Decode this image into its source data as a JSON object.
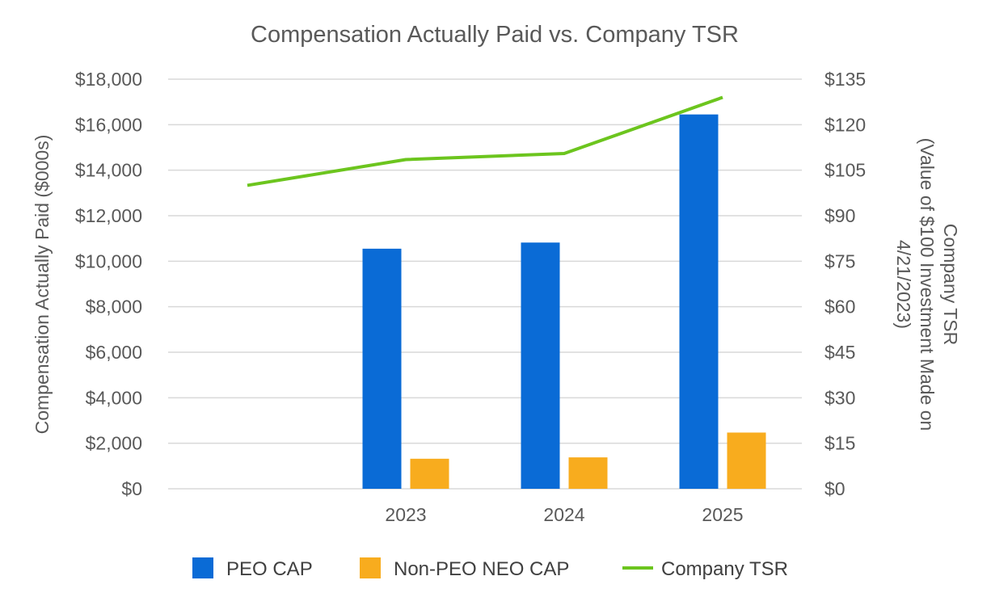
{
  "chart_data": {
    "type": "bar",
    "title": "Compensation Actually Paid vs. Company TSR",
    "categories": [
      "",
      "2023",
      "2024",
      "2025"
    ],
    "series": [
      {
        "name": "PEO CAP",
        "type": "bar",
        "axis": "left",
        "color": "#0a6bd6",
        "values": [
          null,
          10550,
          10820,
          16450
        ]
      },
      {
        "name": "Non-PEO NEO CAP",
        "type": "bar",
        "axis": "left",
        "color": "#f8ac1e",
        "values": [
          null,
          1320,
          1380,
          2470
        ]
      },
      {
        "name": "Company TSR",
        "type": "line",
        "axis": "right",
        "color": "#6cc51e",
        "values": [
          100,
          108.5,
          110.5,
          129
        ]
      }
    ],
    "ylabel": "Compensation Actually Paid ($000s)",
    "y2label_lines": [
      "Company TSR",
      "(Value of $100 Investment Made on",
      "4/21/2023)"
    ],
    "ylim": [
      0,
      18000
    ],
    "y2lim": [
      0,
      135
    ],
    "yticks": [
      "$0",
      "$2,000",
      "$4,000",
      "$6,000",
      "$8,000",
      "$10,000",
      "$12,000",
      "$14,000",
      "$16,000",
      "$18,000"
    ],
    "y2ticks": [
      "$0",
      "$15",
      "$30",
      "$45",
      "$60",
      "$75",
      "$90",
      "$105",
      "$120",
      "$135"
    ],
    "grid": true,
    "legend": "bottom"
  }
}
